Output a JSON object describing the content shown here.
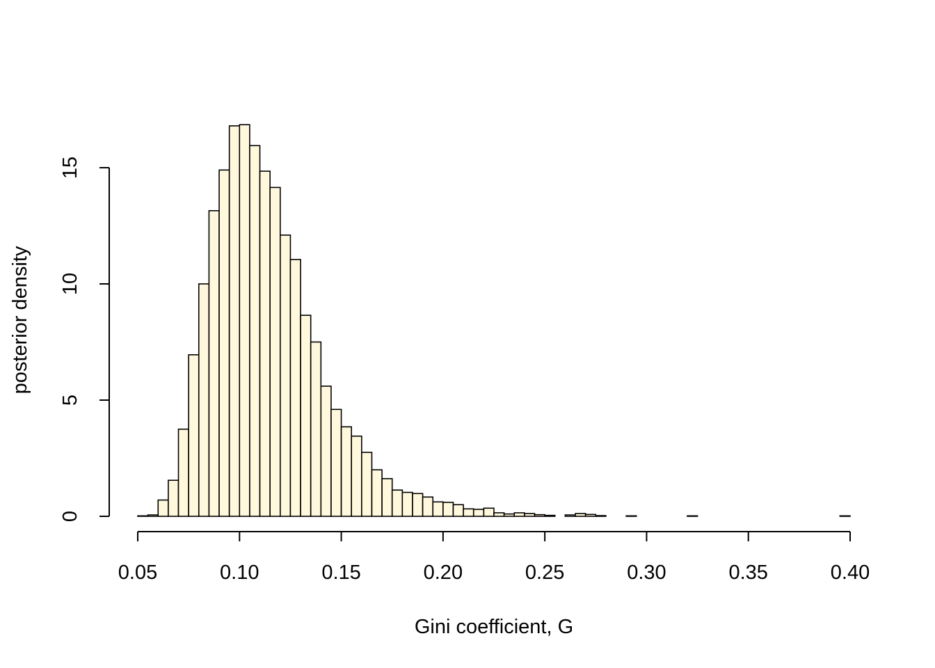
{
  "chart_data": {
    "type": "bar",
    "title": "",
    "xlabel": "Gini coefficient, G",
    "ylabel": "posterior density",
    "xlim": [
      0.05,
      0.4
    ],
    "ylim": [
      0,
      17
    ],
    "bin_width": 0.005,
    "bin_start": 0.05,
    "x_ticks": [
      0.05,
      0.1,
      0.15,
      0.2,
      0.25,
      0.3,
      0.35,
      0.4
    ],
    "x_tick_labels": [
      "0.05",
      "0.10",
      "0.15",
      "0.20",
      "0.25",
      "0.30",
      "0.35",
      "0.40"
    ],
    "y_ticks": [
      0,
      5,
      10,
      15
    ],
    "y_tick_labels": [
      "0",
      "5",
      "10",
      "15"
    ],
    "bar_color": "#FFF8DC",
    "grid": false,
    "values": [
      0.02,
      0.06,
      0.7,
      1.55,
      3.75,
      6.95,
      10.0,
      13.15,
      14.9,
      16.8,
      16.85,
      15.95,
      14.85,
      14.15,
      12.1,
      11.05,
      8.65,
      7.5,
      5.6,
      4.6,
      3.85,
      3.45,
      2.75,
      2.0,
      1.62,
      1.13,
      1.03,
      0.98,
      0.83,
      0.62,
      0.6,
      0.5,
      0.32,
      0.3,
      0.35,
      0.15,
      0.1,
      0.15,
      0.12,
      0.07,
      0.04,
      0.0,
      0.06,
      0.12,
      0.08,
      0.03,
      0.0,
      0.0,
      0.02,
      0.0,
      0.0,
      0.0,
      0.0,
      0.0,
      0.02,
      0.0,
      0.0,
      0.0,
      0.0,
      0.0,
      0.0,
      0.0,
      0.0,
      0.0,
      0.0,
      0.0,
      0.0,
      0.0,
      0.0,
      0.02
    ]
  }
}
